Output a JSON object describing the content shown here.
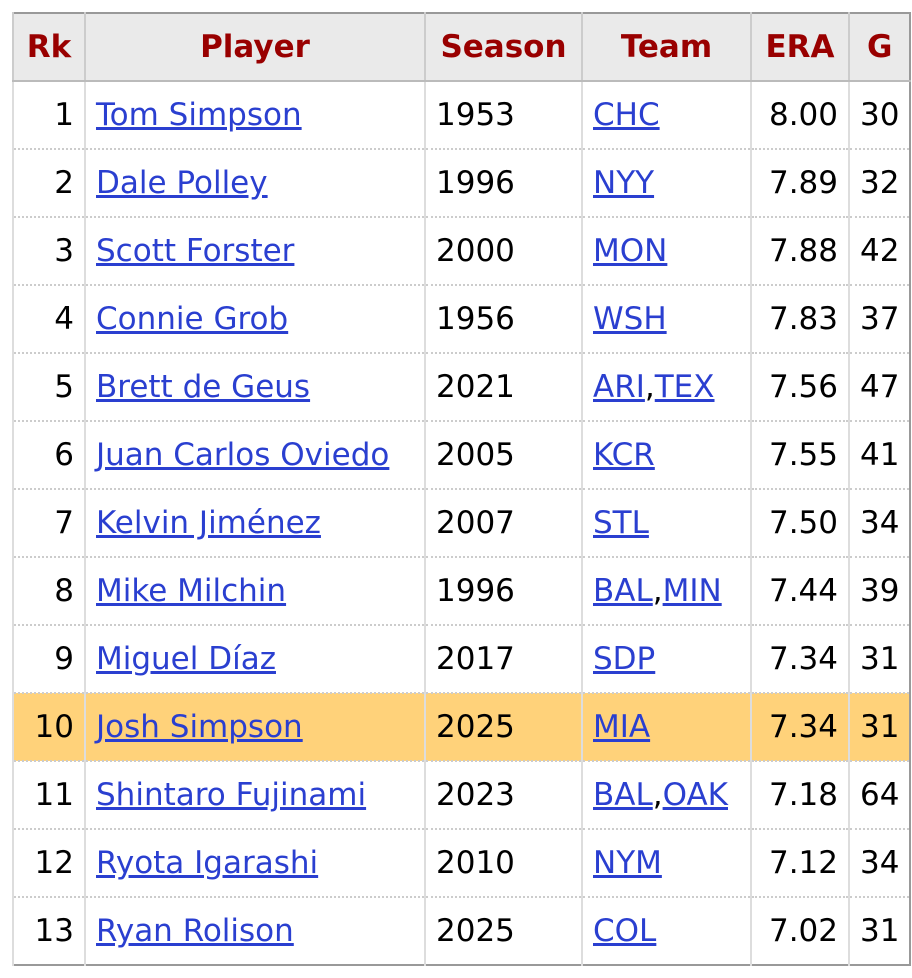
{
  "table": {
    "columns": [
      "Rk",
      "Player",
      "Season",
      "Team",
      "ERA",
      "G"
    ],
    "team_separator": ",",
    "highlighted_row": 9,
    "highlight_color": "#ffd27a",
    "rows": [
      [
        1,
        "Tom Simpson",
        1953,
        [
          "CHC"
        ],
        "8.00",
        30
      ],
      [
        2,
        "Dale Polley",
        1996,
        [
          "NYY"
        ],
        "7.89",
        32
      ],
      [
        3,
        "Scott Forster",
        2000,
        [
          "MON"
        ],
        "7.88",
        42
      ],
      [
        4,
        "Connie Grob",
        1956,
        [
          "WSH"
        ],
        "7.83",
        37
      ],
      [
        5,
        "Brett de Geus",
        2021,
        [
          "ARI",
          "TEX"
        ],
        "7.56",
        47
      ],
      [
        6,
        "Juan Carlos Oviedo",
        2005,
        [
          "KCR"
        ],
        "7.55",
        41
      ],
      [
        7,
        "Kelvin Jiménez",
        2007,
        [
          "STL"
        ],
        "7.50",
        34
      ],
      [
        8,
        "Mike Milchin",
        1996,
        [
          "BAL",
          "MIN"
        ],
        "7.44",
        39
      ],
      [
        9,
        "Miguel Díaz",
        2017,
        [
          "SDP"
        ],
        "7.34",
        31
      ],
      [
        10,
        "Josh Simpson",
        2025,
        [
          "MIA"
        ],
        "7.34",
        31
      ],
      [
        11,
        "Shintaro Fujinami",
        2023,
        [
          "BAL",
          "OAK"
        ],
        "7.18",
        64
      ],
      [
        12,
        "Ryota Igarashi",
        2010,
        [
          "NYM"
        ],
        "7.12",
        34
      ],
      [
        13,
        "Ryan Rolison",
        2025,
        [
          "COL"
        ],
        "7.02",
        31
      ]
    ]
  }
}
